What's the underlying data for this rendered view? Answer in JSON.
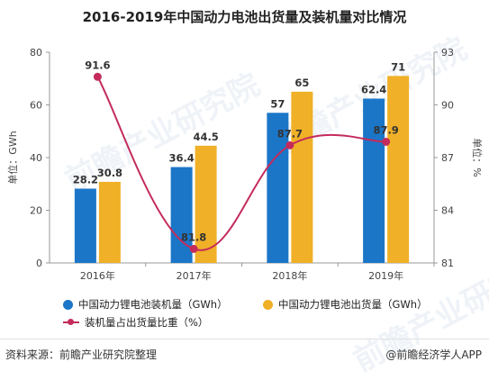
{
  "title": "2016-2019年中国动力电池出货量及装机量对比情况",
  "colors": {
    "installed": "#1b76c8",
    "shipment": "#f0b027",
    "ratio": "#c42b5b",
    "axis": "#999999",
    "text": "#444444"
  },
  "chart_data": {
    "type": "bar",
    "categories": [
      "2016年",
      "2017年",
      "2018年",
      "2019年"
    ],
    "series": [
      {
        "name": "中国动力锂电池装机量（GWh）",
        "type": "bar",
        "axis": "left",
        "values": [
          28.2,
          36.4,
          57,
          62.4
        ],
        "labels": [
          "28.2",
          "36.4",
          "57",
          "62.4"
        ]
      },
      {
        "name": "中国动力锂电池出货量（GWh）",
        "type": "bar",
        "axis": "left",
        "values": [
          30.8,
          44.5,
          65,
          71
        ],
        "labels": [
          "30.8",
          "44.5",
          "65",
          "71"
        ]
      },
      {
        "name": "装机量占出货量比重（%）",
        "type": "line",
        "axis": "right",
        "values": [
          91.6,
          81.8,
          87.7,
          87.9
        ],
        "labels": [
          "91.6",
          "81.8",
          "87.7",
          "87.9"
        ]
      }
    ],
    "y_left": {
      "label": "单位：GWh",
      "min": 0,
      "max": 80,
      "ticks": [
        "0",
        "20",
        "40",
        "60",
        "80"
      ]
    },
    "y_right": {
      "label": "单位：%",
      "min": 81,
      "max": 93,
      "ticks": [
        "81",
        "84",
        "87",
        "90",
        "93"
      ]
    },
    "grid": false,
    "legend_position": "bottom"
  },
  "legend": {
    "installed": "中国动力锂电池装机量（GWh）",
    "shipment": "中国动力锂电池出货量（GWh）",
    "ratio": "装机量占出货量比重（%）"
  },
  "footer": {
    "source": "资料来源：前瞻产业研究院整理",
    "brand": "@前瞻经济学人APP"
  },
  "watermark": "前瞻产业研究院"
}
